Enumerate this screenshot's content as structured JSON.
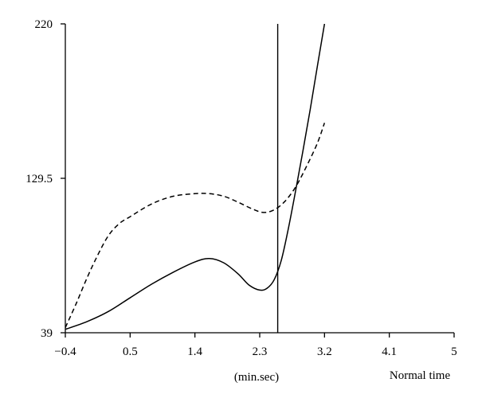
{
  "chart_data": {
    "type": "line",
    "title": "",
    "xlabel": "(min.sec)",
    "xlabel_right": "Normal time",
    "xlim": [
      -0.4,
      5
    ],
    "ylim": [
      39,
      220
    ],
    "x_ticks": [
      "−0.4",
      "0.5",
      "1.4",
      "2.3",
      "3.2",
      "4.1",
      "5"
    ],
    "x_tick_values": [
      -0.4,
      0.5,
      1.4,
      2.3,
      3.2,
      4.1,
      5
    ],
    "y_ticks": [
      "39",
      "129.5",
      "220"
    ],
    "y_tick_values": [
      39,
      129.5,
      220
    ],
    "grid": false,
    "vertical_marker_x": 2.55,
    "series": [
      {
        "style": "solid",
        "color": "#000000",
        "x": [
          -0.4,
          -0.1,
          0.2,
          0.5,
          0.8,
          1.1,
          1.4,
          1.6,
          1.8,
          2.0,
          2.15,
          2.3,
          2.4,
          2.5,
          2.6,
          2.7,
          2.8,
          2.9,
          3.0,
          3.1,
          3.2
        ],
        "y": [
          41,
          45.5,
          51.5,
          59.5,
          67.5,
          74.5,
          80.5,
          82.5,
          80,
          73.5,
          67,
          64,
          65,
          70,
          81.5,
          100.5,
          122.5,
          145.5,
          169.5,
          195,
          220
        ]
      },
      {
        "style": "dashed",
        "color": "#000000",
        "x": [
          -0.4,
          -0.25,
          -0.1,
          0.05,
          0.2,
          0.35,
          0.5,
          0.8,
          1.1,
          1.4,
          1.6,
          1.8,
          2.0,
          2.2,
          2.35,
          2.5,
          2.65,
          2.8,
          2.95,
          3.1,
          3.2
        ],
        "y": [
          42,
          56,
          71,
          84.5,
          96,
          103,
          107,
          114.5,
          119,
          120.5,
          120.5,
          119,
          115.5,
          111.5,
          109.5,
          111,
          116,
          124.5,
          136.5,
          150,
          162
        ]
      }
    ]
  }
}
